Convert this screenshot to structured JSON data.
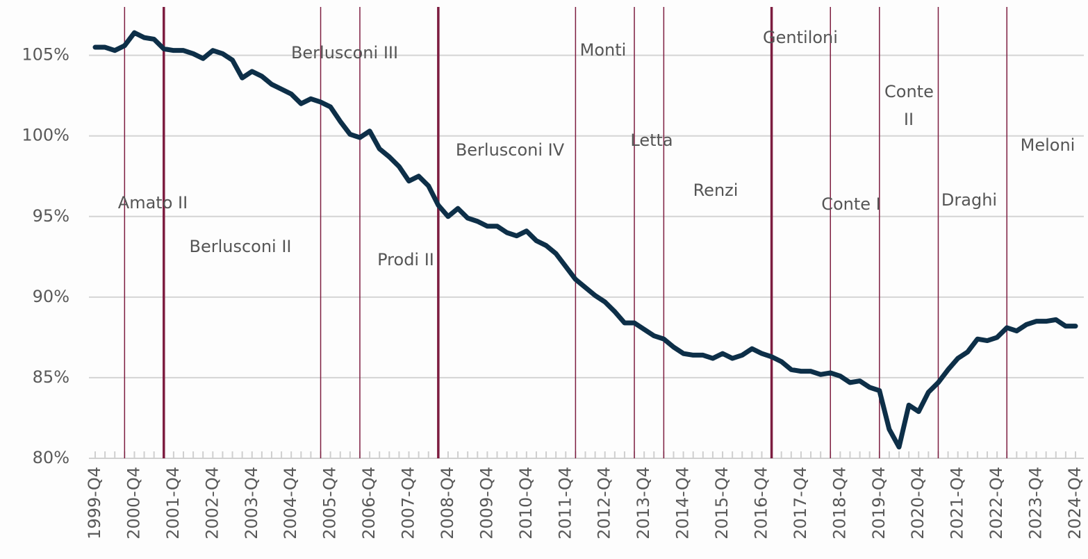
{
  "chart_data": {
    "type": "line",
    "categories": [
      "1999-Q4",
      null,
      null,
      null,
      "2000-Q4",
      null,
      null,
      null,
      "2001-Q4",
      null,
      null,
      null,
      "2002-Q4",
      null,
      null,
      null,
      "2003-Q4",
      null,
      null,
      null,
      "2004-Q4",
      null,
      null,
      null,
      "2005-Q4",
      null,
      null,
      null,
      "2006-Q4",
      null,
      null,
      null,
      "2007-Q4",
      null,
      null,
      null,
      "2008-Q4",
      null,
      null,
      null,
      "2009-Q4",
      null,
      null,
      null,
      "2010-Q4",
      null,
      null,
      null,
      "2011-Q4",
      null,
      null,
      null,
      "2012-Q4",
      null,
      null,
      null,
      "2013-Q4",
      null,
      null,
      null,
      "2014-Q4",
      null,
      null,
      null,
      "2015-Q4",
      null,
      null,
      null,
      "2016-Q4",
      null,
      null,
      null,
      "2017-Q4",
      null,
      null,
      null,
      "2018-Q4",
      null,
      null,
      null,
      "2019-Q4",
      null,
      null,
      null,
      "2020-Q4",
      null,
      null,
      null,
      "2021-Q4",
      null,
      null,
      null,
      "2022-Q4",
      null,
      null,
      null,
      "2023-Q4",
      null,
      null,
      null,
      "2024-Q4"
    ],
    "series": [
      {
        "color": "#0d2f48",
        "values": [
          105.5,
          105.5,
          105.3,
          105.6,
          106.4,
          106.1,
          106.0,
          105.4,
          105.3,
          105.3,
          105.1,
          104.8,
          105.3,
          105.1,
          104.7,
          103.6,
          104.0,
          103.7,
          103.2,
          102.9,
          102.6,
          102.0,
          102.3,
          102.1,
          101.8,
          100.9,
          100.1,
          99.9,
          100.3,
          99.2,
          98.7,
          98.1,
          97.2,
          97.5,
          96.9,
          95.7,
          95.0,
          95.5,
          94.9,
          94.7,
          94.4,
          94.4,
          94.0,
          93.8,
          94.1,
          93.5,
          93.2,
          92.7,
          91.9,
          91.1,
          90.6,
          90.1,
          89.7,
          89.1,
          88.4,
          88.4,
          88.0,
          87.6,
          87.4,
          86.9,
          86.5,
          86.4,
          86.4,
          86.2,
          86.5,
          86.2,
          86.4,
          86.8,
          86.5,
          86.3,
          86.0,
          85.5,
          85.4,
          85.4,
          85.2,
          85.3,
          85.1,
          84.7,
          84.8,
          84.4,
          84.2,
          81.8,
          80.7,
          83.3,
          82.9,
          84.1,
          84.7,
          85.5,
          86.2,
          86.6,
          87.4,
          87.3,
          87.5,
          88.1,
          87.9,
          88.3,
          88.5,
          88.5,
          88.6,
          88.2,
          88.2
        ]
      }
    ],
    "ylim": [
      80,
      108
    ],
    "yticks": [
      {
        "value": 80,
        "label": "80%"
      },
      {
        "value": 85,
        "label": "85%"
      },
      {
        "value": 90,
        "label": "90%"
      },
      {
        "value": 95,
        "label": "95%"
      },
      {
        "value": 100,
        "label": "100%"
      },
      {
        "value": 105,
        "label": "105%"
      }
    ],
    "grid": true,
    "line_color": "#7d1d40",
    "governments": [
      {
        "name": "Amato II",
        "start": 3,
        "emphasis": false
      },
      {
        "name": "Berlusconi II",
        "start": 7,
        "emphasis": true
      },
      {
        "name": "Berlusconi III",
        "start": 23,
        "emphasis": false
      },
      {
        "name": "Prodi II",
        "start": 27,
        "emphasis": false
      },
      {
        "name": "Berlusconi IV",
        "start": 35,
        "emphasis": true
      },
      {
        "name": "Monti",
        "start": 49,
        "emphasis": false
      },
      {
        "name": "Letta",
        "start": 55,
        "emphasis": false
      },
      {
        "name": "Renzi",
        "start": 58,
        "emphasis": false
      },
      {
        "name": "Gentiloni",
        "start": 69,
        "emphasis": true
      },
      {
        "name": "Conte I",
        "start": 75,
        "emphasis": false
      },
      {
        "name": "Conte II",
        "start": 80,
        "emphasis": false
      },
      {
        "name": "Draghi",
        "start": 86,
        "emphasis": false
      },
      {
        "name": "Meloni",
        "start": 93,
        "emphasis": false
      }
    ]
  }
}
